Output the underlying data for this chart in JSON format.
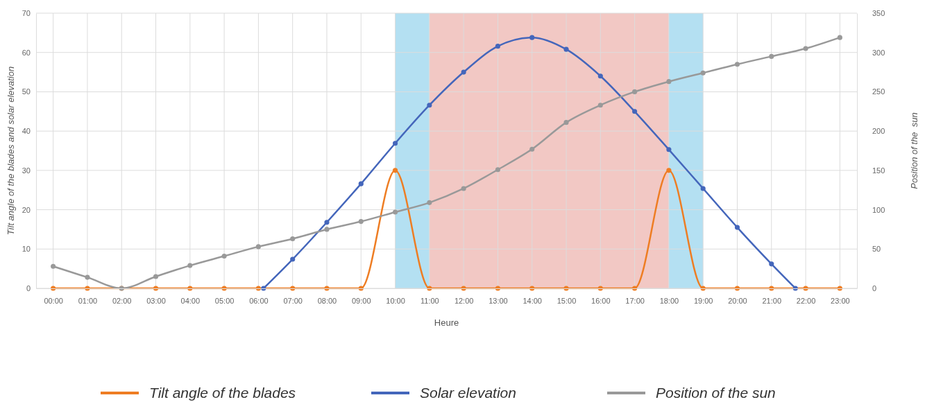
{
  "chart_data": {
    "type": "line",
    "xlabel": "Heure",
    "ylabel": "Tilt angle of the blades and solar elevation",
    "y2label": "Position of the  sun",
    "xlim": [
      -0.5,
      23.5
    ],
    "xticks": [
      {
        "value": 0,
        "label": "00:00"
      },
      {
        "value": 1,
        "label": "01:00"
      },
      {
        "value": 2,
        "label": "02:00"
      },
      {
        "value": 3,
        "label": "03:00"
      },
      {
        "value": 4,
        "label": "04:00"
      },
      {
        "value": 5,
        "label": "05:00"
      },
      {
        "value": 6,
        "label": "06:00"
      },
      {
        "value": 7,
        "label": "07:00"
      },
      {
        "value": 8,
        "label": "08:00"
      },
      {
        "value": 9,
        "label": "09:00"
      },
      {
        "value": 10,
        "label": "10:00"
      },
      {
        "value": 11,
        "label": "11:00"
      },
      {
        "value": 12,
        "label": "12:00"
      },
      {
        "value": 13,
        "label": "13:00"
      },
      {
        "value": 14,
        "label": "14:00"
      },
      {
        "value": 15,
        "label": "15:00"
      },
      {
        "value": 16,
        "label": "16:00"
      },
      {
        "value": 17,
        "label": "17:00"
      },
      {
        "value": 18,
        "label": "18:00"
      },
      {
        "value": 19,
        "label": "19:00"
      },
      {
        "value": 20,
        "label": "20:00"
      },
      {
        "value": 21,
        "label": "21:00"
      },
      {
        "value": 22,
        "label": "22:00"
      },
      {
        "value": 23,
        "label": "23:00"
      }
    ],
    "ylim": [
      0,
      70
    ],
    "yticks": [
      0,
      10,
      20,
      30,
      40,
      50,
      60,
      70
    ],
    "y2lim": [
      0,
      350
    ],
    "y2ticks": [
      0,
      50,
      100,
      150,
      200,
      250,
      300,
      350
    ],
    "grid": true,
    "legend": "bottom",
    "marker": "circle",
    "line_style": "solid",
    "bands": [
      {
        "axis": "x",
        "from": 10,
        "to": 11,
        "color": "#b4e0f2"
      },
      {
        "axis": "x",
        "from": 11,
        "to": 18,
        "color": "#f2c8c4"
      },
      {
        "axis": "x",
        "from": 18,
        "to": 19,
        "color": "#b4e0f2"
      }
    ],
    "series": [
      {
        "name": "Tilt angle of the blades",
        "color": "#ee7d23",
        "x": [
          0,
          1,
          2,
          3,
          4,
          5,
          6,
          7,
          8,
          9,
          10,
          11,
          12,
          13,
          14,
          15,
          16,
          17,
          18,
          19,
          20,
          21,
          22,
          23
        ],
        "values": [
          0,
          0,
          0,
          0,
          0,
          0,
          0,
          0,
          0,
          0,
          30,
          0,
          0,
          0,
          0,
          0,
          0,
          0,
          30,
          0,
          0,
          0,
          0,
          0
        ]
      },
      {
        "name": "Solar elevation",
        "color": "#4466bb",
        "x": [
          6.15,
          7,
          8,
          9,
          10,
          11,
          12,
          13,
          14,
          15,
          16,
          17,
          18,
          19,
          20,
          21,
          21.7
        ],
        "values": [
          0,
          7.4,
          16.8,
          26.6,
          36.9,
          46.6,
          55,
          61.6,
          63.8,
          60.8,
          54,
          45,
          35.3,
          25.4,
          15.5,
          6.2,
          0
        ]
      },
      {
        "name": "Position of the sun",
        "color": "#999999",
        "axis": "y2",
        "x": [
          0,
          1,
          2,
          3,
          4,
          5,
          6,
          7,
          8,
          9,
          10,
          11,
          12,
          13,
          14,
          15,
          16,
          17,
          18,
          19,
          20,
          21,
          22,
          23
        ],
        "values": [
          28,
          14,
          0,
          15,
          29,
          41,
          53,
          63,
          75,
          85,
          97,
          109,
          127,
          151,
          177,
          211,
          233,
          250,
          263,
          274,
          285,
          295,
          305,
          319
        ]
      }
    ]
  }
}
